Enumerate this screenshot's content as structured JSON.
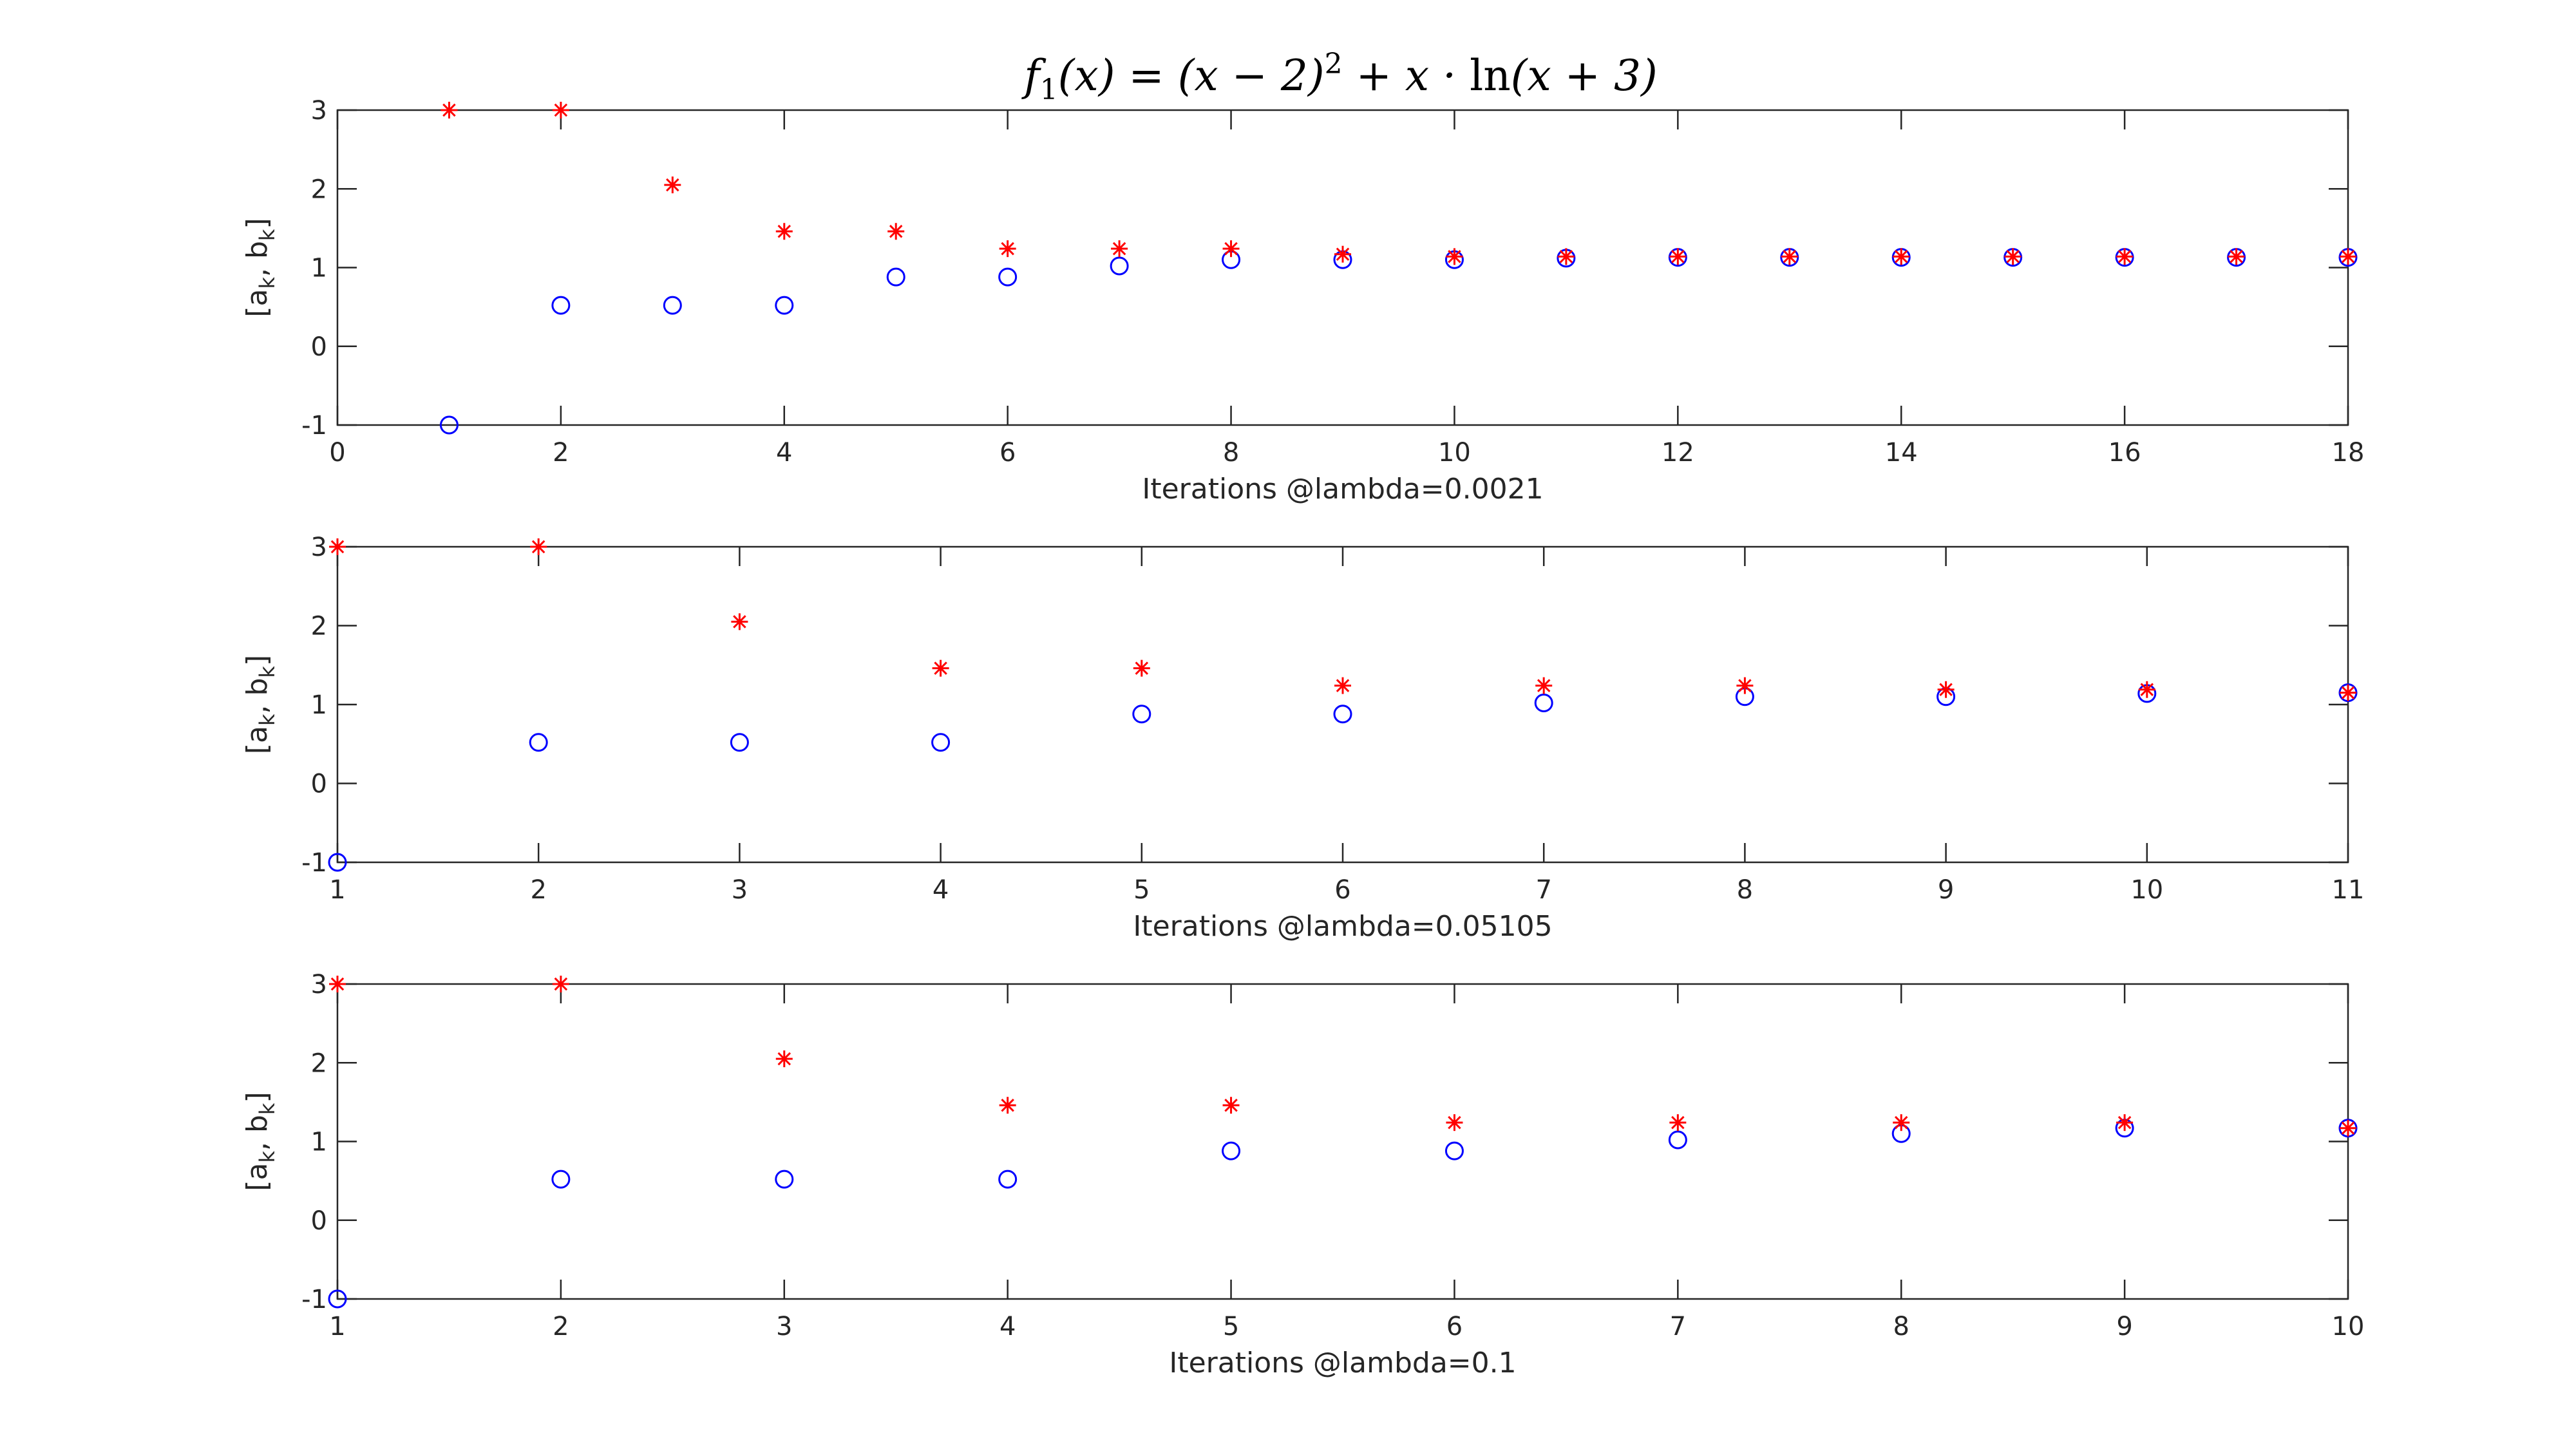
{
  "figure": {
    "title_parts": [
      "f",
      "1",
      "(x) = (x − 2)",
      "2",
      " + x · ",
      "ln",
      "(x + 3)"
    ],
    "ylabel_parts": [
      "[a",
      "k",
      ", b",
      "k",
      "]"
    ]
  },
  "chart_data": [
    {
      "type": "scatter",
      "title": "f1(x) = (x-2)^2 + x*ln(x+3)",
      "xlabel": "Iterations @lambda=0.0021",
      "ylabel": "[a_k, b_k]",
      "xlim": [
        0,
        18
      ],
      "ylim": [
        -1,
        3
      ],
      "xticks": [
        0,
        2,
        4,
        6,
        8,
        10,
        12,
        14,
        16,
        18
      ],
      "xtick_labels": [
        "0",
        "2",
        "4",
        "6",
        "8",
        "10",
        "12",
        "14",
        "16",
        "18"
      ],
      "yticks": [
        -1,
        0,
        1,
        2,
        3
      ],
      "ytick_labels": [
        "-1",
        "0",
        "1",
        "2",
        "3"
      ],
      "grid": false,
      "series": [
        {
          "marker": "circle",
          "color": "#0000ff",
          "x": [
            1,
            2,
            3,
            4,
            5,
            6,
            7,
            8,
            9,
            10,
            11,
            12,
            13,
            14,
            15,
            16,
            17,
            18
          ],
          "y": [
            -1,
            0.52,
            0.52,
            0.52,
            0.88,
            0.88,
            1.02,
            1.1,
            1.1,
            1.1,
            1.12,
            1.13,
            1.13,
            1.13,
            1.13,
            1.13,
            1.13,
            1.13
          ]
        },
        {
          "marker": "asterisk",
          "color": "#ff0000",
          "x": [
            1,
            2,
            3,
            4,
            5,
            6,
            7,
            8,
            9,
            10,
            11,
            12,
            13,
            14,
            15,
            16,
            17,
            18
          ],
          "y": [
            3,
            3,
            2.05,
            1.46,
            1.46,
            1.24,
            1.24,
            1.24,
            1.17,
            1.14,
            1.14,
            1.14,
            1.14,
            1.14,
            1.14,
            1.14,
            1.14,
            1.14
          ]
        }
      ]
    },
    {
      "type": "scatter",
      "xlabel": "Iterations @lambda=0.05105",
      "ylabel": "[a_k, b_k]",
      "xlim": [
        1,
        11
      ],
      "ylim": [
        -1,
        3
      ],
      "xticks": [
        1,
        2,
        3,
        4,
        5,
        6,
        7,
        8,
        9,
        10,
        11
      ],
      "xtick_labels": [
        "1",
        "2",
        "3",
        "4",
        "5",
        "6",
        "7",
        "8",
        "9",
        "10",
        "11"
      ],
      "yticks": [
        -1,
        0,
        1,
        2,
        3
      ],
      "ytick_labels": [
        "-1",
        "0",
        "1",
        "2",
        "3"
      ],
      "grid": false,
      "series": [
        {
          "marker": "circle",
          "color": "#0000ff",
          "x": [
            1,
            2,
            3,
            4,
            5,
            6,
            7,
            8,
            9,
            10,
            11
          ],
          "y": [
            -1,
            0.52,
            0.52,
            0.52,
            0.88,
            0.88,
            1.02,
            1.1,
            1.1,
            1.14,
            1.15
          ]
        },
        {
          "marker": "asterisk",
          "color": "#ff0000",
          "x": [
            1,
            2,
            3,
            4,
            5,
            6,
            7,
            8,
            9,
            10,
            11
          ],
          "y": [
            3,
            3,
            2.05,
            1.46,
            1.46,
            1.24,
            1.24,
            1.24,
            1.19,
            1.19,
            1.15
          ]
        }
      ]
    },
    {
      "type": "scatter",
      "xlabel": "Iterations @lambda=0.1",
      "ylabel": "[a_k, b_k]",
      "xlim": [
        1,
        10
      ],
      "ylim": [
        -1,
        3
      ],
      "xticks": [
        1,
        2,
        3,
        4,
        5,
        6,
        7,
        8,
        9,
        10
      ],
      "xtick_labels": [
        "1",
        "2",
        "3",
        "4",
        "5",
        "6",
        "7",
        "8",
        "9",
        "10"
      ],
      "yticks": [
        -1,
        0,
        1,
        2,
        3
      ],
      "ytick_labels": [
        "-1",
        "0",
        "1",
        "2",
        "3"
      ],
      "grid": false,
      "series": [
        {
          "marker": "circle",
          "color": "#0000ff",
          "x": [
            1,
            2,
            3,
            4,
            5,
            6,
            7,
            8,
            9,
            10
          ],
          "y": [
            -1,
            0.52,
            0.52,
            0.52,
            0.88,
            0.88,
            1.02,
            1.1,
            1.17,
            1.17
          ]
        },
        {
          "marker": "asterisk",
          "color": "#ff0000",
          "x": [
            1,
            2,
            3,
            4,
            5,
            6,
            7,
            8,
            9,
            10
          ],
          "y": [
            3,
            3,
            2.05,
            1.46,
            1.46,
            1.24,
            1.24,
            1.24,
            1.24,
            1.17
          ]
        }
      ]
    }
  ]
}
